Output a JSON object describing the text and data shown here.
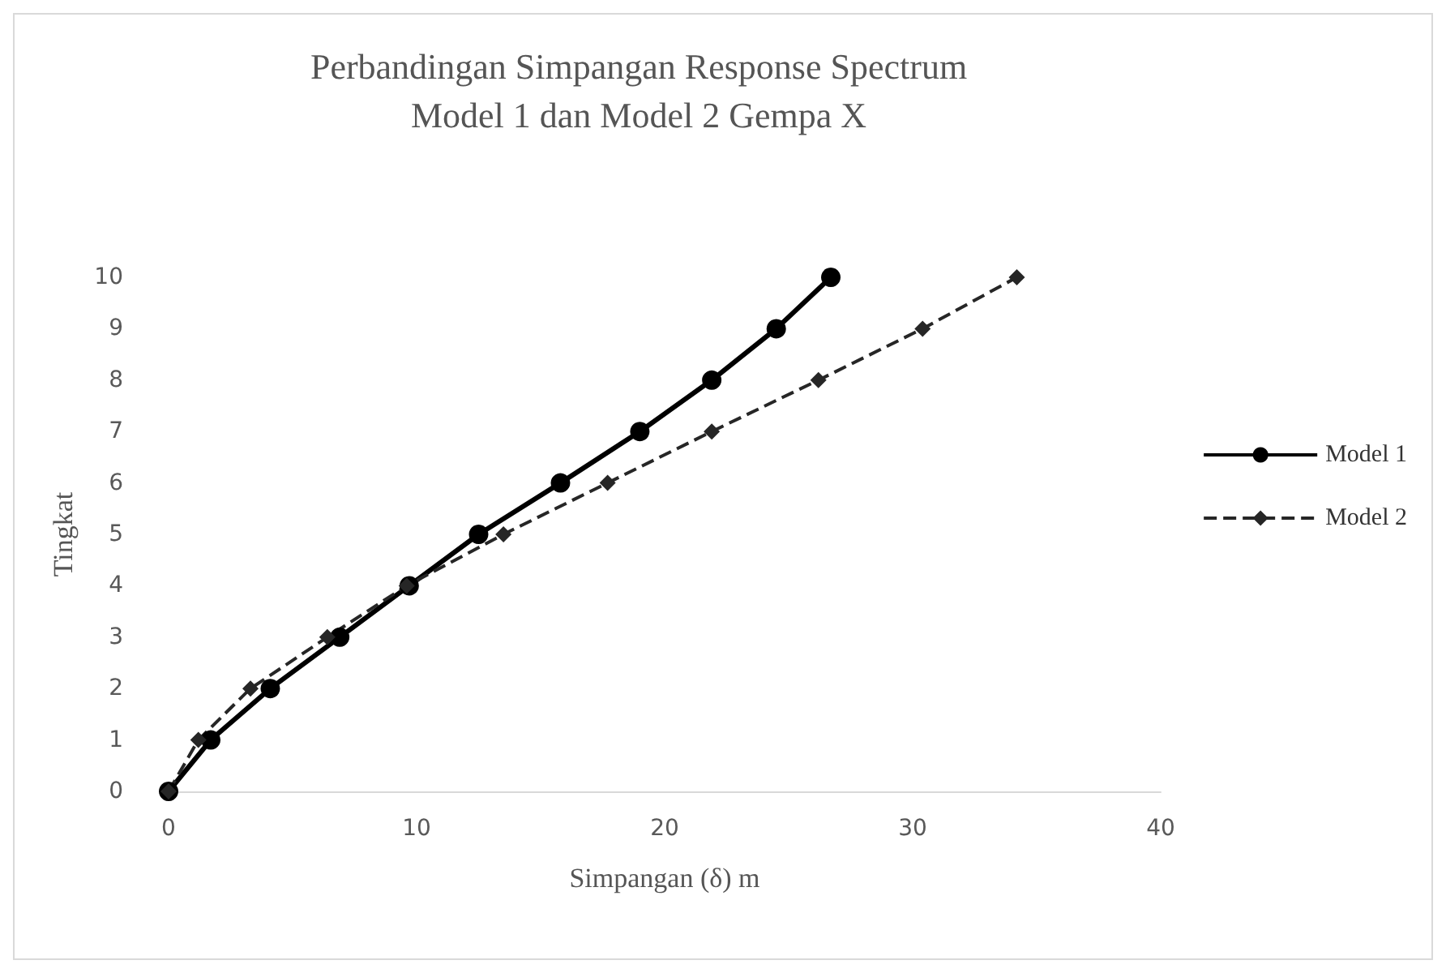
{
  "chart_data": {
    "type": "line",
    "title": "Perbandingan Simpangan Response Spectrum\nModel 1 dan Model 2 Gempa X",
    "xlabel": "Simpangan (δ) m",
    "ylabel": "Tingkat",
    "xlim": [
      0,
      40
    ],
    "xticks": [
      0,
      10,
      20,
      30,
      40
    ],
    "ylim": [
      0,
      10
    ],
    "yticks": [
      0,
      1,
      2,
      3,
      4,
      5,
      6,
      7,
      8,
      9,
      10
    ],
    "grid": false,
    "legend": "right",
    "series": [
      {
        "name": "Model 1",
        "color": "#000000",
        "marker": "circle",
        "line_style": "solid",
        "x": [
          0,
          1.7,
          4.1,
          6.9,
          9.7,
          12.5,
          15.8,
          19.0,
          21.9,
          24.5,
          26.7
        ],
        "values": [
          0,
          1,
          2,
          3,
          4,
          5,
          6,
          7,
          8,
          9,
          10
        ]
      },
      {
        "name": "Model 2",
        "color": "#262626",
        "marker": "diamond",
        "line_style": "dashed",
        "x": [
          0,
          1.2,
          3.3,
          6.4,
          9.6,
          13.5,
          17.7,
          21.9,
          26.2,
          30.4,
          34.2
        ],
        "values": [
          0,
          1,
          2,
          3,
          4,
          5,
          6,
          7,
          8,
          9,
          10
        ]
      }
    ]
  }
}
